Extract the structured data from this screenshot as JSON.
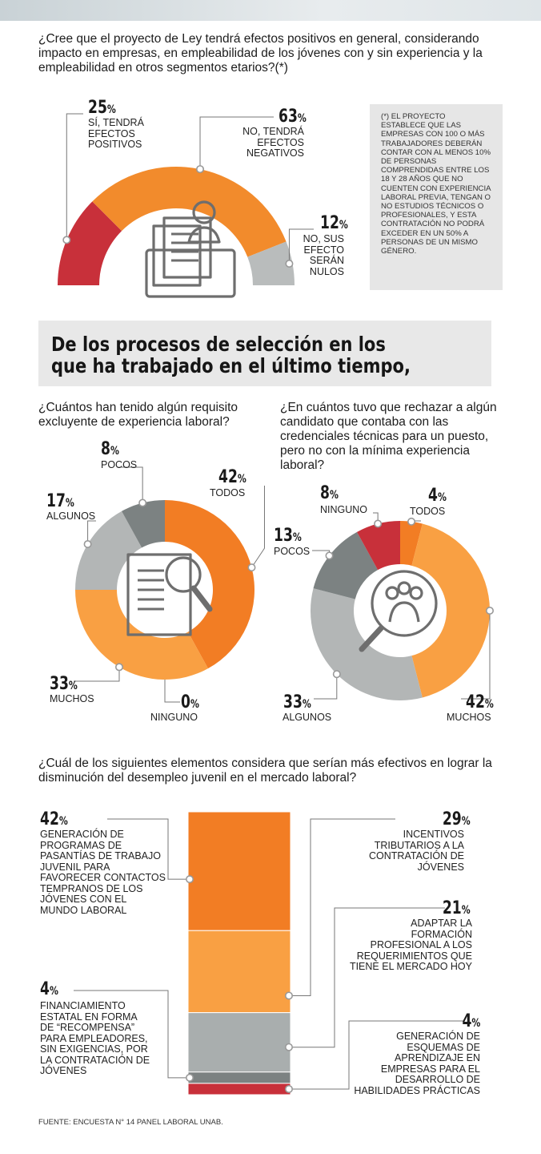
{
  "q1": {
    "question": "¿Cree que el proyecto de Ley tendrá efectos positivos en general, considerando impacto en empresas, en empleabilidad de los jóvenes con y sin experiencia y la empleabilidad en otros segmentos etarios?(*)",
    "note": "(*) El proyecto establece que las empresas con 100 o más trabajadores deberán contar con al menos 10% de personas comprendidas entre los 18 y 28 años que no cuenten con experiencia laboral previa, tengan o no estudios técnicos o profesionales, y esta contratación no podrá exceder en un 50% a personas de un mismo género."
  },
  "section_title": "De los procesos de selección en los que ha trabajado en el último tiempo,",
  "q2": {
    "question": "¿Cuántos han tenido algún requisito excluyente de experiencia laboral?"
  },
  "q3": {
    "question": "¿En cuántos tuvo que rechazar a algún candidato que contaba con las credenciales técnicas para un puesto, pero no con la mínima experiencia laboral?"
  },
  "q4": {
    "question": "¿Cuál de los siguientes elementos considera que serían más efectivos en lograr la disminución del desempleo juvenil en el mercado laboral?"
  },
  "source": "FUENTE:  ENCUESTA N° 14 PANEL LABORAL UNAB.",
  "pct_suffix": "%",
  "chart_data": [
    {
      "type": "pie",
      "variant": "semi-donut",
      "categories": [
        "SÍ, TENDRÁ EFECTOS POSITIVOS",
        "NO, TENDRÁ EFECTOS NEGATIVOS",
        "NO, SUS EFECTO SERÁN NULOS"
      ],
      "labels": [
        "SÍ, TENDRÁ\nEFECTOS\nPOSITIVOS",
        "NO, TENDRÁ\nEFECTOS\nNEGATIVOS",
        "NO, SUS\nEFECTO\nSERÁN\nNULOS"
      ],
      "values": [
        25,
        63,
        12
      ],
      "colors": [
        "#c8303a",
        "#f28b2c",
        "#b9bcbc"
      ]
    },
    {
      "type": "pie",
      "variant": "donut",
      "categories": [
        "TODOS",
        "NINGUNO",
        "MUCHOS",
        "ALGUNOS",
        "POCOS"
      ],
      "values": [
        42,
        0,
        33,
        17,
        8
      ],
      "colors": [
        "#f27d24",
        "#c8303a",
        "#f9a043",
        "#b3b6b6",
        "#7c8282"
      ]
    },
    {
      "type": "pie",
      "variant": "donut",
      "categories": [
        "TODOS",
        "MUCHOS",
        "ALGUNOS",
        "POCOS",
        "NINGUNO"
      ],
      "values": [
        4,
        42,
        33,
        13,
        8
      ],
      "colors": [
        "#f27d24",
        "#f9a043",
        "#b3b6b6",
        "#7c8282",
        "#c8303a"
      ]
    },
    {
      "type": "bar",
      "variant": "stacked-single",
      "categories": [
        "GENERACIÓN DE PROGRAMAS DE PASANTÍAS DE TRABAJO JUVENIL PARA FAVORECER CONTACTOS TEMPRANOS DE LOS JÓVENES CON EL MUNDO LABORAL",
        "INCENTIVOS TRIBUTARIOS A LA CONTRATACIÓN DE JÓVENES",
        "ADAPTAR LA FORMACIÓN PROFESIONAL A LOS REQUERIMIENTOS QUE TIENE EL MERCADO HOY",
        "FINANCIAMIENTO ESTATAL EN FORMA DE “RECOMPENSA” PARA EMPLEADORES, SIN EXIGENCIAS, POR LA CONTRATACIÓN DE JÓVENES",
        "GENERACIÓN DE ESQUEMAS DE APRENDIZAJE EN EMPRESAS PARA EL DESARROLLO DE HABILIDADES PRÁCTICAS"
      ],
      "labels": [
        "GENERACIÓN DE\nPROGRAMAS DE\nPASANTÍAS DE TRABAJO\nJUVENIL PARA\nFAVORECER CONTACTOS\nTEMPRANOS DE LOS\nJÓVENES CON EL\nMUNDO LABORAL",
        "INCENTIVOS\nTRIBUTARIOS A LA\nCONTRATACIÓN DE\nJÓVENES",
        "ADAPTAR LA\nFORMACIÓN\nPROFESIONAL A LOS\nREQUERIMIENTOS QUE\nTIENE EL MERCADO HOY",
        "FINANCIAMIENTO\nESTATAL EN FORMA\nDE “RECOMPENSA”\nPARA EMPLEADORES,\nSIN EXIGENCIAS, POR\nLA CONTRATACIÓN DE\nJÓVENES",
        "GENERACIÓN DE\nESQUEMAS DE\nAPRENDIZAJE EN\nEMPRESAS PARA EL\nDESARROLLO DE\nHABILIDADES PRÁCTICAS"
      ],
      "values": [
        42,
        29,
        21,
        4,
        4
      ],
      "colors": [
        "#f27d24",
        "#f9a043",
        "#a9aeae",
        "#7c8282",
        "#c8303a"
      ]
    }
  ]
}
